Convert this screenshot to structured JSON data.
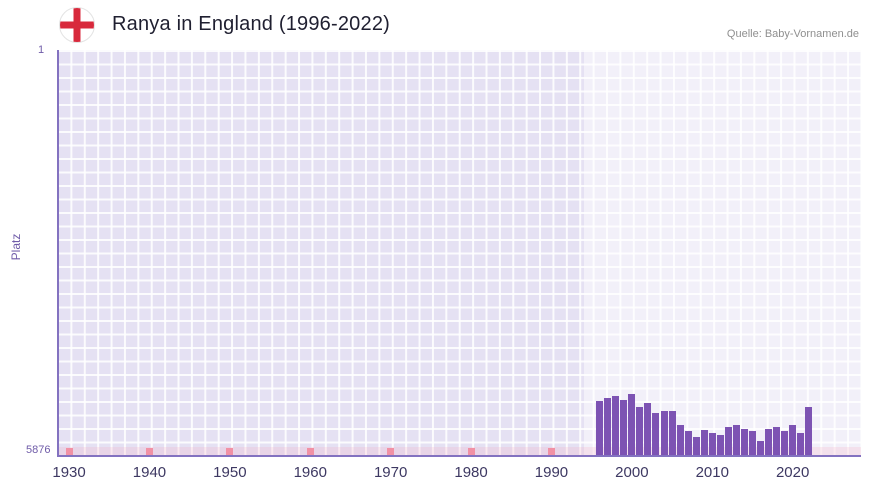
{
  "header": {
    "title": "Ranya in England (1996-2022)",
    "source": "Quelle: Baby-Vornamen.de",
    "flag_icon": "england-flag-icon"
  },
  "chart_data": {
    "type": "bar",
    "title": "Ranya in England (1996-2022)",
    "ylabel": "Platz",
    "y_axis": {
      "top_label": "1",
      "bottom_label": "5876",
      "min": 1,
      "max": 5876,
      "inverted": true
    },
    "x_axis": {
      "start_year": 1928.5,
      "end_year": 2028.5,
      "tick_years": [
        1930,
        1940,
        1950,
        1960,
        1970,
        1980,
        1990,
        2000,
        2010,
        2020
      ]
    },
    "highlight_range": {
      "from": 1994,
      "to": 2028.5
    },
    "decade_marker_years": [
      1930,
      1940,
      1950,
      1960,
      1970,
      1980,
      1990
    ],
    "series": [
      {
        "name": "Platz",
        "years": [
          1996,
          1997,
          1998,
          1999,
          2000,
          2001,
          2002,
          2003,
          2004,
          2005,
          2006,
          2007,
          2008,
          2009,
          2010,
          2011,
          2012,
          2013,
          2014,
          2015,
          2016,
          2017,
          2018,
          2019,
          2020,
          2021,
          2022
        ],
        "values": [
          5100,
          5050,
          5020,
          5080,
          4990,
          5180,
          5120,
          5270,
          5240,
          5240,
          5440,
          5530,
          5620,
          5510,
          5560,
          5590,
          5470,
          5440,
          5500,
          5530,
          5670,
          5500,
          5470,
          5530,
          5440,
          5560,
          5180
        ]
      }
    ],
    "colors": {
      "bar": "#7d53b3",
      "axis": "#8372c0",
      "plot_background": "#e5e1f3",
      "marker_pink": "#f191a5",
      "x_tick_text": "#3d3862",
      "y_tick_text": "#6f5ba8",
      "flag_cross_red": "#d8293c"
    },
    "legend": null,
    "grid": true
  }
}
